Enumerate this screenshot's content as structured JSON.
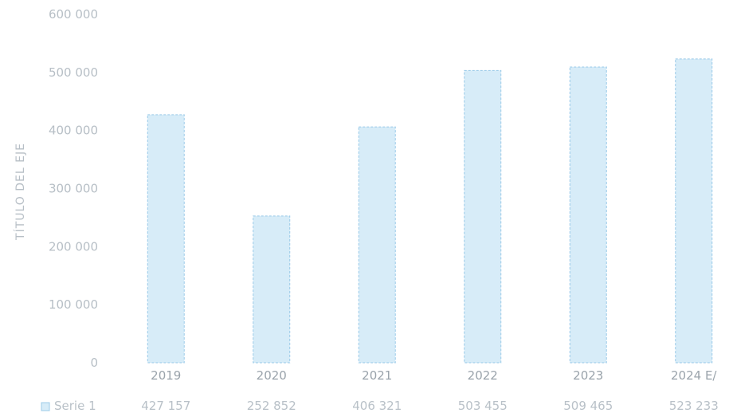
{
  "chart_data": {
    "type": "bar",
    "title": "",
    "xlabel": "",
    "ylabel": "TÍTULO DEL EJE",
    "categories": [
      "2019",
      "2020",
      "2021",
      "2022",
      "2023",
      "2024 E/"
    ],
    "series": [
      {
        "name": "Serie 1",
        "values": [
          427157,
          252852,
          406321,
          503455,
          509465,
          523233
        ],
        "value_labels": [
          "427 157",
          "252 852",
          "406 321",
          "503 455",
          "509 465",
          "523 233"
        ]
      }
    ],
    "yticks": [
      "0",
      "100 000",
      "200 000",
      "300 000",
      "400 000",
      "500 000",
      "600 000"
    ],
    "ylim": [
      0,
      600000
    ],
    "grid": false,
    "legend": "bottom-left, as data table row",
    "colors": {
      "bar": "#d7ecf8",
      "bar_edge": "#79b8e0",
      "text": "#b7bfc6"
    }
  }
}
